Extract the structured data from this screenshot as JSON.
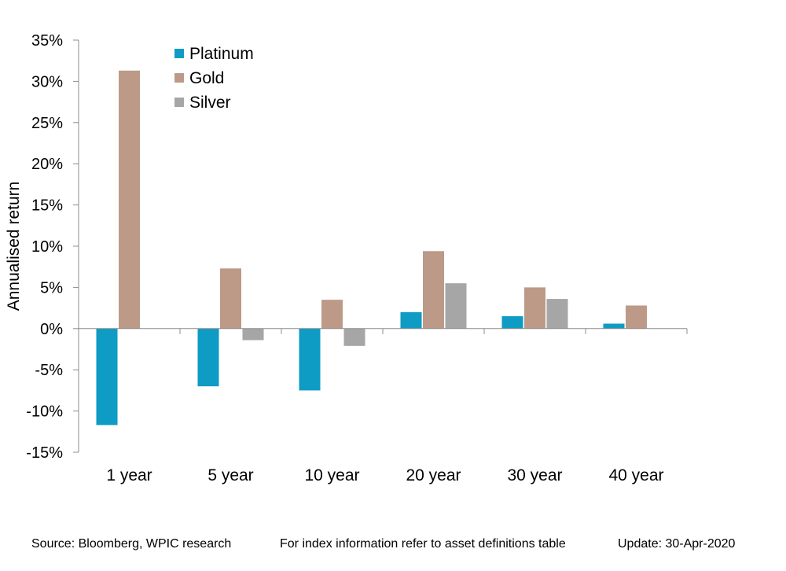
{
  "chart_data": {
    "type": "bar",
    "ylabel": "Annualised return",
    "ylim": [
      -15,
      35
    ],
    "yticks": [
      "35%",
      "30%",
      "25%",
      "20%",
      "15%",
      "10%",
      "5%",
      "0%",
      "-5%",
      "-10%",
      "-15%"
    ],
    "categories": [
      "1 year",
      "5 year",
      "10 year",
      "20 year",
      "30 year",
      "40 year"
    ],
    "legend_position": "top-left",
    "grid": false,
    "series": [
      {
        "name": "Platinum",
        "color": "#0e9bc4",
        "values": [
          -11.7,
          -7.0,
          -7.5,
          2.0,
          1.5,
          0.6
        ]
      },
      {
        "name": "Gold",
        "color": "#bc9a87",
        "values": [
          31.3,
          7.3,
          3.5,
          9.4,
          5.0,
          2.8
        ]
      },
      {
        "name": "Silver",
        "color": "#a6a6a6",
        "values": [
          null,
          -1.4,
          -2.1,
          5.5,
          3.6,
          null
        ]
      }
    ]
  },
  "footer": {
    "source": "Source: Bloomberg, WPIC research",
    "note": "For index information refer to asset definitions table",
    "update": "Update: 30-Apr-2020"
  }
}
